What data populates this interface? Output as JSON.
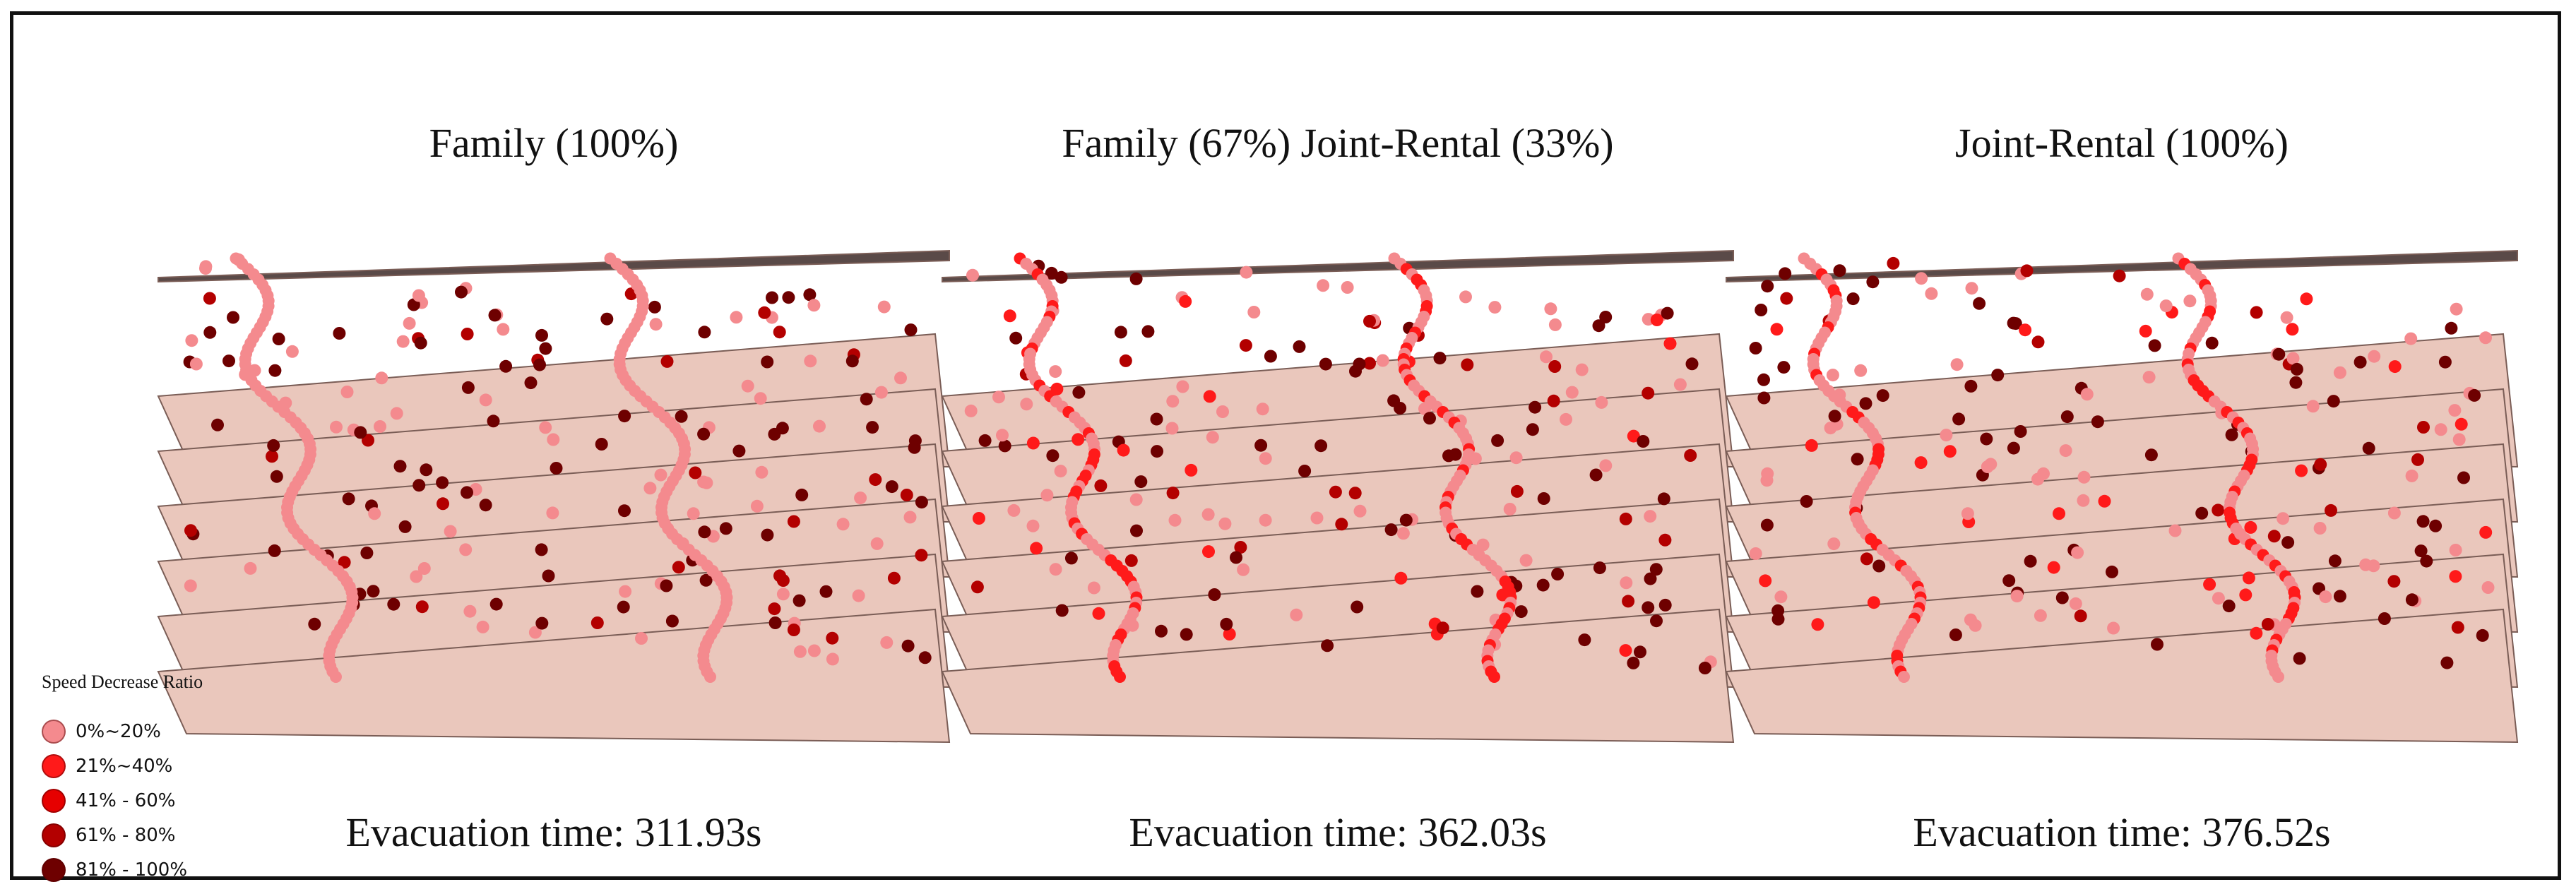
{
  "panels": [
    {
      "title": "Family (100%)",
      "evacuation": "Evacuation time: 311.93s",
      "mix": {
        "light": 0.42,
        "bright": 0.0
      }
    },
    {
      "title": "Family (67%) Joint-Rental (33%)",
      "evacuation": "Evacuation time: 362.03s",
      "mix": {
        "light": 0.34,
        "bright": 0.14
      }
    },
    {
      "title": "Joint-Rental (100%)",
      "evacuation": "Evacuation time: 376.52s",
      "mix": {
        "light": 0.36,
        "bright": 0.12
      }
    }
  ],
  "legend": {
    "title": "Speed Decrease Ratio",
    "items": [
      {
        "label": "0%~20%",
        "color": "#f48a8e"
      },
      {
        "label": "21%~40%",
        "color": "#ff1a1a"
      },
      {
        "label": "41% - 60%",
        "color": "#e60000"
      },
      {
        "label": "61% - 80%",
        "color": "#b30000"
      },
      {
        "label": "81% - 100%",
        "color": "#6e0000"
      }
    ]
  },
  "colors": {
    "floor": "#eac7bc",
    "floor_edge": "#7a5d56",
    "roof": "#5a4a48"
  },
  "floors": 7
}
